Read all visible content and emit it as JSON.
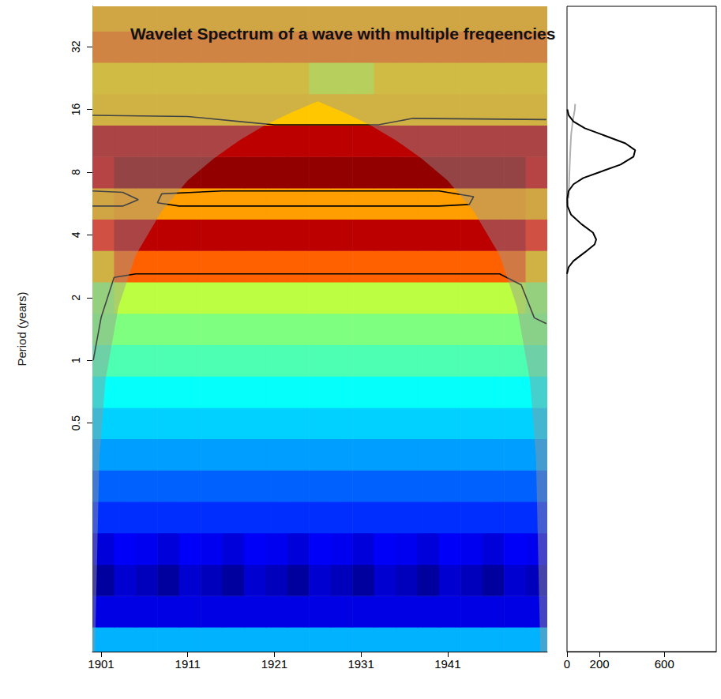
{
  "chart_data": [
    {
      "type": "heatmap",
      "title": "Wavelet Spectrum of a wave with multiple freqeencies",
      "ylabel": "Period (years)",
      "log": "y",
      "xlim": [
        1900,
        1952.5
      ],
      "xticks": [
        1901,
        1911,
        1921,
        1931,
        1941
      ],
      "ylim": [
        0.04,
        50
      ],
      "yticks": [
        0.5,
        1,
        2,
        4,
        8,
        16,
        32
      ],
      "zlim": [
        0,
        10
      ],
      "x": [
        1901.25,
        1903.75,
        1906.25,
        1908.75,
        1911.25,
        1913.75,
        1916.25,
        1918.75,
        1921.25,
        1923.75,
        1926.25,
        1928.75,
        1931.25,
        1933.75,
        1936.25,
        1938.75,
        1941.25,
        1943.75,
        1946.25,
        1948.75,
        1951.25
      ],
      "y": [
        0.044,
        0.0625,
        0.088,
        0.125,
        0.177,
        0.25,
        0.354,
        0.5,
        0.707,
        1,
        1.414,
        2,
        2.828,
        4,
        5.657,
        8,
        11.31,
        16,
        22.63,
        32,
        45.25
      ],
      "z": [
        [
          3,
          3,
          3,
          3,
          3,
          3,
          3,
          3,
          3,
          3,
          3,
          3,
          3,
          3,
          3,
          3,
          3,
          3,
          3,
          3,
          3
        ],
        [
          1,
          1,
          1,
          1,
          1,
          1,
          1,
          1,
          1,
          1,
          1,
          1,
          1,
          1,
          1,
          1,
          1,
          1,
          1,
          1,
          1
        ],
        [
          0.3,
          0.8,
          0.6,
          0.3,
          0.8,
          0.6,
          0.3,
          0.8,
          0.6,
          0.3,
          0.8,
          0.6,
          0.3,
          0.8,
          0.6,
          0.3,
          0.8,
          0.6,
          0.3,
          0.8,
          0.6
        ],
        [
          0.9,
          1.2,
          1.1,
          0.9,
          1.2,
          1.1,
          0.9,
          1.2,
          1.1,
          0.9,
          1.2,
          1.1,
          0.9,
          1.2,
          1.1,
          0.9,
          1.2,
          1.1,
          0.9,
          1.2,
          1.1
        ],
        [
          1.7,
          1.7,
          1.7,
          1.7,
          1.7,
          1.7,
          1.7,
          1.7,
          1.7,
          1.7,
          1.7,
          1.7,
          1.7,
          1.7,
          1.7,
          1.7,
          1.7,
          1.7,
          1.7,
          1.7,
          1.7
        ],
        [
          2.2,
          2.2,
          2.2,
          2.2,
          2.2,
          2.2,
          2.2,
          2.2,
          2.2,
          2.2,
          2.2,
          2.2,
          2.2,
          2.2,
          2.2,
          2.2,
          2.2,
          2.2,
          2.2,
          2.2,
          2.2
        ],
        [
          2.8,
          2.8,
          2.8,
          2.8,
          2.8,
          2.8,
          2.8,
          2.8,
          2.8,
          2.8,
          2.8,
          2.8,
          2.8,
          2.8,
          2.8,
          2.8,
          2.8,
          2.8,
          2.8,
          2.8,
          2.8
        ],
        [
          3.3,
          3.3,
          3.3,
          3.3,
          3.3,
          3.3,
          3.3,
          3.3,
          3.3,
          3.3,
          3.3,
          3.3,
          3.3,
          3.3,
          3.3,
          3.3,
          3.3,
          3.3,
          3.3,
          3.3,
          3.3
        ],
        [
          3.8,
          3.8,
          3.8,
          3.8,
          3.8,
          3.8,
          3.8,
          3.8,
          3.8,
          3.8,
          3.8,
          3.8,
          3.8,
          3.8,
          3.8,
          3.8,
          3.8,
          3.8,
          3.8,
          3.8,
          3.8
        ],
        [
          4.5,
          4.5,
          4.5,
          4.5,
          4.5,
          4.5,
          4.5,
          4.5,
          4.5,
          4.5,
          4.5,
          4.5,
          4.5,
          4.5,
          4.5,
          4.5,
          4.5,
          4.5,
          4.5,
          4.5,
          4.5
        ],
        [
          5,
          5,
          5,
          5,
          5,
          5,
          5,
          5,
          5,
          5,
          5,
          5,
          5,
          5,
          5,
          5,
          5,
          5,
          5,
          5,
          5
        ],
        [
          5.2,
          5.6,
          5.6,
          5.6,
          5.6,
          5.6,
          5.6,
          5.6,
          5.6,
          5.6,
          5.6,
          5.6,
          5.6,
          5.6,
          5.6,
          5.6,
          5.6,
          5.6,
          5.6,
          5.6,
          5.2
        ],
        [
          6.8,
          7.8,
          7.8,
          7.8,
          7.8,
          7.8,
          7.8,
          7.8,
          7.8,
          7.8,
          7.8,
          7.8,
          7.8,
          7.8,
          7.8,
          7.8,
          7.8,
          7.8,
          7.8,
          7.8,
          6.8
        ],
        [
          8.5,
          9.4,
          9.4,
          9.4,
          9.4,
          9.4,
          9.4,
          9.4,
          9.4,
          9.4,
          9.4,
          9.4,
          9.4,
          9.4,
          9.4,
          9.4,
          9.4,
          9.4,
          9.4,
          9.4,
          8.5
        ],
        [
          7,
          7.2,
          7.2,
          7.2,
          7.2,
          7.2,
          7.2,
          7.2,
          7.2,
          7.2,
          7.2,
          7.2,
          7.2,
          7.2,
          7.2,
          7.2,
          7.2,
          7.2,
          7.2,
          7.2,
          7
        ],
        [
          9.2,
          9.8,
          9.8,
          9.8,
          9.8,
          9.8,
          9.8,
          9.8,
          9.8,
          9.8,
          9.8,
          9.8,
          9.8,
          9.8,
          9.8,
          9.8,
          9.8,
          9.8,
          9.8,
          9.8,
          9.2
        ],
        [
          9.4,
          9.4,
          9.4,
          9.4,
          9.4,
          9.4,
          9.4,
          9.4,
          9.4,
          9.4,
          9.4,
          9.4,
          9.4,
          9.4,
          9.4,
          9.4,
          9.4,
          9.4,
          9.4,
          9.4,
          9.4
        ],
        [
          6.8,
          6.8,
          6.8,
          6.8,
          6.8,
          6.8,
          6.8,
          6.8,
          6.8,
          6.8,
          6.8,
          6.8,
          6.8,
          6.8,
          6.8,
          6.8,
          6.8,
          6.8,
          6.8,
          6.8,
          6.8
        ],
        [
          6.6,
          6.6,
          6.6,
          6.6,
          6.6,
          6.6,
          6.6,
          6.6,
          6.6,
          6.6,
          5.8,
          5.8,
          5.8,
          6.6,
          6.6,
          6.6,
          6.6,
          6.6,
          6.6,
          6.6,
          6.6
        ],
        [
          7.6,
          7.6,
          7.6,
          7.6,
          7.6,
          7.6,
          7.6,
          7.6,
          7.6,
          7.6,
          7.6,
          7.6,
          7.6,
          7.6,
          7.6,
          7.6,
          7.6,
          7.6,
          7.6,
          7.6,
          7.6
        ],
        [
          7,
          7,
          7,
          7,
          7,
          7,
          7,
          7,
          7,
          7,
          7,
          7,
          7,
          7,
          7,
          7,
          7,
          7,
          7,
          7,
          7
        ]
      ],
      "coi": {
        "x": [
          1900.3,
          1900.8,
          1901.5,
          1903,
          1905,
          1908,
          1911,
          1914,
          1917,
          1920,
          1923,
          1926,
          1929,
          1932,
          1935,
          1938,
          1941,
          1944,
          1947,
          1949,
          1950.5,
          1951.2,
          1951.7
        ],
        "period": [
          0.04,
          0.34,
          0.8,
          1.8,
          3.2,
          5.2,
          7.3,
          9.3,
          11.4,
          13.5,
          15.5,
          17.5,
          15.5,
          13.5,
          11.4,
          9.3,
          7.3,
          5.2,
          3.2,
          1.8,
          0.8,
          0.34,
          0.04
        ]
      },
      "contours": [
        {
          "x": [
            1900.1,
            1901,
            1902.5,
            1905,
            1947,
            1949.5,
            1951,
            1952.4
          ],
          "period": [
            1,
            1.6,
            2.5,
            2.6,
            2.6,
            2.3,
            1.6,
            1.5
          ]
        },
        {
          "x": [
            1900,
            1911,
            1917,
            1921,
            1933,
            1937,
            1952.4
          ],
          "period": [
            15,
            14.8,
            14,
            13.5,
            13.5,
            14.5,
            14.3
          ]
        },
        {
          "x": [
            1907.5,
            1908,
            1915,
            1940,
            1944,
            1943.5,
            1940,
            1920,
            1910,
            1907.5
          ],
          "period": [
            5.7,
            6.3,
            6.5,
            6.5,
            6.1,
            5.6,
            5.5,
            5.5,
            5.5,
            5.7
          ]
        },
        {
          "x": [
            1900,
            1903.5,
            1905.3,
            1903.5,
            1900
          ],
          "period": [
            5.5,
            5.5,
            5.9,
            6.4,
            6.5
          ]
        }
      ]
    },
    {
      "type": "line",
      "log": "y",
      "tick_labels": "x",
      "xlim": [
        0,
        920
      ],
      "xticks": [
        0,
        200,
        600
      ],
      "ylim": [
        0.04,
        50
      ],
      "series": [
        {
          "color": "#b0b0b0",
          "period": [
            6,
            8,
            10,
            12,
            14,
            16,
            17
          ],
          "power": [
            10,
            15,
            20,
            25,
            35,
            48,
            50
          ]
        },
        {
          "color": "#000000",
          "period": [
            2.6,
            2.8,
            3.0,
            3.3,
            3.6,
            3.8,
            4.1,
            4.5,
            5.0,
            5.5,
            6.0,
            6.5,
            7.0,
            7.5,
            8.0,
            8.7,
            9.5,
            10.2,
            11,
            12,
            13,
            14,
            15,
            16
          ],
          "power": [
            0,
            10,
            40,
            110,
            170,
            180,
            160,
            90,
            25,
            3,
            2,
            10,
            40,
            100,
            200,
            330,
            410,
            420,
            360,
            230,
            110,
            40,
            10,
            2
          ]
        }
      ]
    }
  ]
}
